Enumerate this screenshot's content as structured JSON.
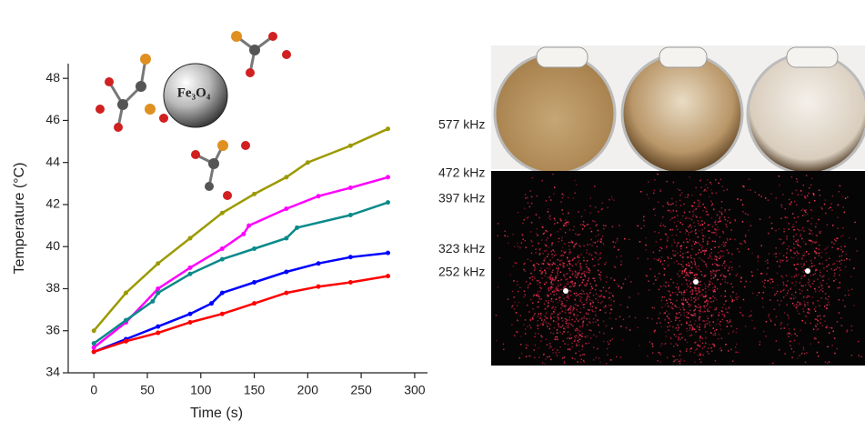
{
  "chart_data": {
    "type": "line",
    "x_label": "Time (s)",
    "y_label": "Temperature (°C)",
    "particle_label": "Fe₃O₄",
    "xlim": [
      -24,
      312
    ],
    "xticks": [
      0,
      50,
      100,
      150,
      200,
      250,
      300
    ],
    "ylim": [
      34,
      48.7
    ],
    "yticks": [
      34,
      36,
      38,
      40,
      42,
      44,
      46,
      48
    ],
    "series": [
      {
        "name": "577 kHz",
        "color": "#9c9a00",
        "x": [
          0,
          30,
          60,
          90,
          120,
          150,
          180,
          200,
          240,
          275
        ],
        "values": [
          36.0,
          37.8,
          39.2,
          40.4,
          41.6,
          42.5,
          43.3,
          44.0,
          44.8,
          45.6
        ]
      },
      {
        "name": "472 kHz",
        "color": "#ff00ff",
        "x": [
          0,
          30,
          60,
          90,
          120,
          140,
          145,
          180,
          210,
          240,
          275
        ],
        "values": [
          35.2,
          36.4,
          38.0,
          39.0,
          39.9,
          40.6,
          41.0,
          41.8,
          42.4,
          42.8,
          43.3
        ]
      },
      {
        "name": "397 kHz",
        "color": "#0a8a8a",
        "x": [
          0,
          30,
          55,
          60,
          90,
          120,
          150,
          180,
          190,
          240,
          275
        ],
        "values": [
          35.4,
          36.5,
          37.4,
          37.8,
          38.7,
          39.4,
          39.9,
          40.4,
          40.9,
          41.5,
          42.1
        ]
      },
      {
        "name": "323 kHz",
        "color": "#0000ff",
        "x": [
          0,
          30,
          60,
          90,
          110,
          120,
          150,
          180,
          210,
          240,
          275
        ],
        "values": [
          35.0,
          35.6,
          36.2,
          36.8,
          37.3,
          37.8,
          38.3,
          38.8,
          39.2,
          39.5,
          39.7
        ]
      },
      {
        "name": "252 kHz",
        "color": "#ff0000",
        "x": [
          0,
          30,
          60,
          90,
          120,
          150,
          180,
          210,
          240,
          275
        ],
        "values": [
          35.0,
          35.5,
          35.9,
          36.4,
          36.8,
          37.3,
          37.8,
          38.1,
          38.3,
          38.6
        ]
      }
    ]
  }
}
